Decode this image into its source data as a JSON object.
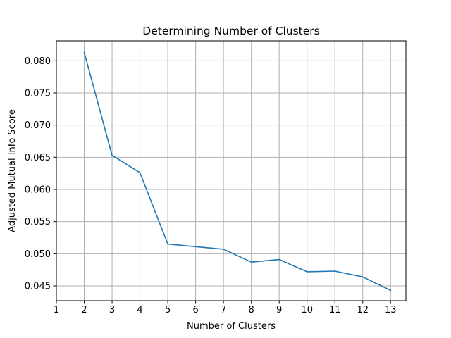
{
  "chart_data": {
    "type": "line",
    "title": "Determining Number of Clusters",
    "xlabel": "Number of Clusters",
    "ylabel": "Adjusted Mutual Info Score",
    "xlim": [
      1,
      13.55
    ],
    "ylim": [
      0.0427,
      0.0831
    ],
    "xticks": [
      1,
      2,
      3,
      4,
      5,
      6,
      7,
      8,
      9,
      10,
      11,
      12,
      13
    ],
    "yticks": [
      0.045,
      0.05,
      0.055,
      0.06,
      0.065,
      0.07,
      0.075,
      0.08
    ],
    "ytick_labels": [
      "0.045",
      "0.050",
      "0.055",
      "0.060",
      "0.065",
      "0.070",
      "0.075",
      "0.080"
    ],
    "grid": true,
    "series": [
      {
        "color": "#1f77b4",
        "x": [
          2,
          3,
          4,
          5,
          6,
          7,
          8,
          9,
          10,
          11,
          12,
          13
        ],
        "y": [
          0.0813,
          0.0653,
          0.0626,
          0.0515,
          0.0511,
          0.0507,
          0.0487,
          0.0491,
          0.0472,
          0.0473,
          0.0464,
          0.0443
        ]
      }
    ]
  }
}
